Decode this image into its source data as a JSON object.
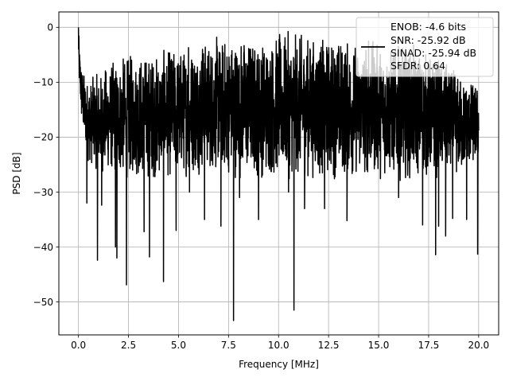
{
  "chart_data": {
    "type": "line",
    "title": "",
    "xlabel": "Frequency [MHz]",
    "ylabel": "PSD [dB]",
    "xlim": [
      -0.98,
      21.0
    ],
    "ylim": [
      -56.0,
      2.8
    ],
    "xticks": [
      0.0,
      2.5,
      5.0,
      7.5,
      10.0,
      12.5,
      15.0,
      17.5,
      20.0
    ],
    "xtick_labels": [
      "0.0",
      "2.5",
      "5.0",
      "7.5",
      "10.0",
      "12.5",
      "15.0",
      "17.5",
      "20.0"
    ],
    "yticks": [
      0,
      -10,
      -20,
      -30,
      -40,
      -50
    ],
    "ytick_labels": [
      "0",
      "−10",
      "−20",
      "−30",
      "−40",
      "−50"
    ],
    "grid": true,
    "legend_position": "top-right",
    "legend": [
      "ENOB: -4.6 bits",
      "SNR: -25.92 dB",
      "SINAD: -25.94 dB",
      "SFDR: 0.64"
    ],
    "series": [
      {
        "color": "#000000",
        "x_range": [
          0.0,
          20.0
        ],
        "envelope": {
          "x": [
            0.0,
            0.05,
            0.15,
            0.3,
            0.5,
            1.0,
            1.5,
            2.0,
            3.0,
            4.0,
            5.0,
            6.0,
            7.0,
            8.0,
            9.0,
            10.0,
            11.0,
            12.0,
            13.0,
            14.0,
            15.0,
            16.0,
            17.0,
            18.0,
            19.0,
            20.0
          ],
          "top": [
            0.0,
            -3.0,
            -6.0,
            -8.0,
            -9.0,
            -8.0,
            -6.0,
            -5.0,
            -4.0,
            -4.0,
            -3.0,
            -2.0,
            -1.0,
            -0.5,
            -1.5,
            -0.5,
            -0.5,
            -1.0,
            -1.0,
            -2.0,
            -2.0,
            -3.0,
            -3.0,
            -5.0,
            -8.0,
            -10.0
          ],
          "bottom": [
            -5.0,
            -12.0,
            -18.0,
            -22.0,
            -25.0,
            -27.0,
            -27.0,
            -28.0,
            -28.0,
            -28.0,
            -28.0,
            -27.0,
            -27.0,
            -28.0,
            -28.0,
            -28.0,
            -28.0,
            -28.0,
            -28.0,
            -28.0,
            -28.0,
            -28.0,
            -28.0,
            -28.0,
            -28.0,
            -25.0
          ]
        },
        "dips": [
          {
            "x": 0.42,
            "y": -32.0
          },
          {
            "x": 0.95,
            "y": -42.4
          },
          {
            "x": 1.16,
            "y": -32.4
          },
          {
            "x": 1.85,
            "y": -40.0
          },
          {
            "x": 1.92,
            "y": -42.0
          },
          {
            "x": 2.4,
            "y": -46.9
          },
          {
            "x": 3.28,
            "y": -37.2
          },
          {
            "x": 3.55,
            "y": -41.8
          },
          {
            "x": 4.25,
            "y": -46.3
          },
          {
            "x": 4.88,
            "y": -37.0
          },
          {
            "x": 5.55,
            "y": -30.0
          },
          {
            "x": 6.3,
            "y": -35.0
          },
          {
            "x": 7.12,
            "y": -36.2
          },
          {
            "x": 7.75,
            "y": -53.4
          },
          {
            "x": 8.05,
            "y": -31.0
          },
          {
            "x": 9.0,
            "y": -35.0
          },
          {
            "x": 10.5,
            "y": -30.0
          },
          {
            "x": 10.77,
            "y": -51.5
          },
          {
            "x": 11.3,
            "y": -33.0
          },
          {
            "x": 12.3,
            "y": -33.0
          },
          {
            "x": 13.42,
            "y": -35.2
          },
          {
            "x": 14.5,
            "y": -36.0
          },
          {
            "x": 16.0,
            "y": -31.0
          },
          {
            "x": 17.2,
            "y": -36.0
          },
          {
            "x": 17.85,
            "y": -41.4
          },
          {
            "x": 18.0,
            "y": -36.2
          },
          {
            "x": 18.35,
            "y": -38.0
          },
          {
            "x": 18.7,
            "y": -34.8
          },
          {
            "x": 19.4,
            "y": -35.0
          },
          {
            "x": 19.95,
            "y": -41.3
          }
        ],
        "peaks": [
          {
            "x": 0.0,
            "y": 0.0
          },
          {
            "x": 5.5,
            "y": -3.7
          },
          {
            "x": 6.2,
            "y": -4.0
          },
          {
            "x": 8.6,
            "y": -4.0
          },
          {
            "x": 10.0,
            "y": -5.5
          },
          {
            "x": 14.5,
            "y": -2.5
          }
        ]
      }
    ]
  }
}
